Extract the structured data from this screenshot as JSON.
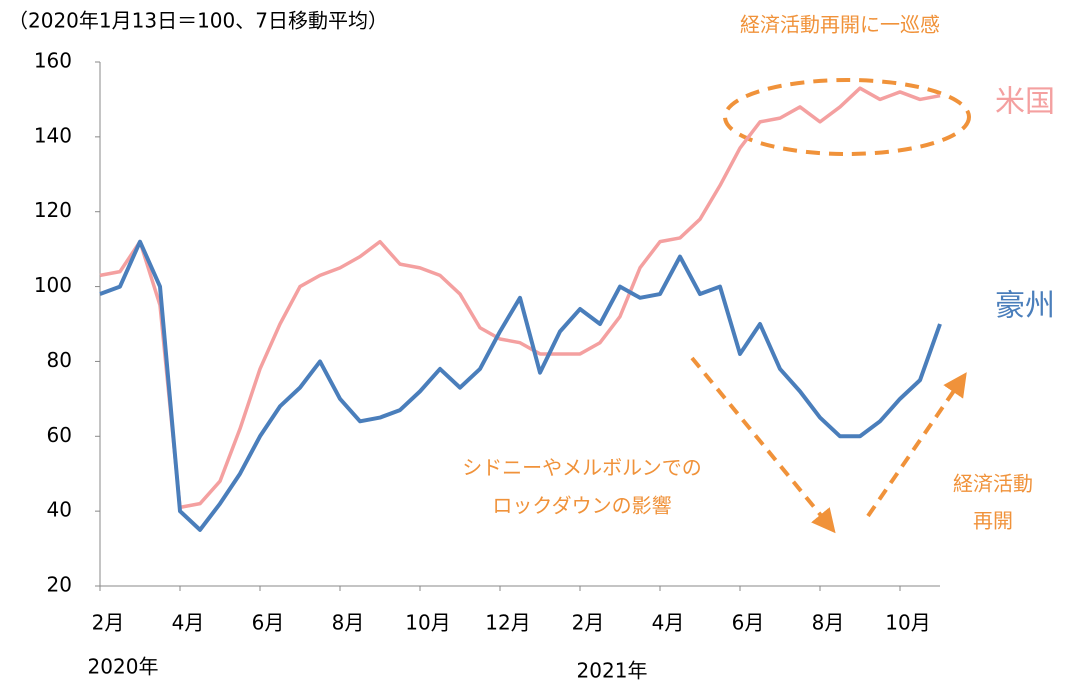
{
  "chart_data": {
    "type": "line",
    "y_axis_label": "（2020年1月13日＝100、7日移動平均）",
    "categories": [
      "2月",
      null,
      null,
      null,
      "4月",
      null,
      null,
      null,
      "6月",
      null,
      null,
      null,
      "8月",
      null,
      null,
      null,
      "10月",
      null,
      null,
      null,
      "12月",
      null,
      null,
      null,
      "2月",
      null,
      null,
      null,
      "4月",
      null,
      null,
      null,
      "6月",
      null,
      null,
      null,
      "8月",
      null,
      null,
      null,
      "10月",
      null,
      null
    ],
    "year_labels": [
      "2020年",
      "2021年"
    ],
    "series": [
      {
        "name": "米国",
        "color": "#f4a0a0",
        "values": [
          103,
          104,
          112,
          95,
          41,
          42,
          48,
          62,
          78,
          90,
          100,
          103,
          105,
          108,
          112,
          106,
          105,
          103,
          98,
          89,
          86,
          85,
          82,
          82,
          82,
          85,
          92,
          105,
          112,
          113,
          118,
          127,
          137,
          144,
          145,
          148,
          144,
          148,
          153,
          150,
          152,
          150,
          151
        ]
      },
      {
        "name": "豪州",
        "color": "#4a7ebb",
        "values": [
          98,
          100,
          112,
          100,
          40,
          35,
          42,
          50,
          60,
          68,
          73,
          80,
          70,
          64,
          65,
          67,
          72,
          78,
          73,
          78,
          88,
          97,
          77,
          88,
          94,
          90,
          100,
          97,
          98,
          108,
          98,
          100,
          82,
          90,
          78,
          72,
          65,
          60,
          60,
          64,
          70,
          75,
          90
        ]
      }
    ],
    "ylim": [
      20,
      160
    ],
    "yticks": [
      20,
      40,
      60,
      80,
      100,
      120,
      140,
      160
    ],
    "annotations": [
      "経済活動再開に一巡感",
      [
        "シドニーやメルボルンでの",
        "ロックダウンの影響"
      ],
      [
        "経済活動",
        "再開"
      ]
    ]
  }
}
